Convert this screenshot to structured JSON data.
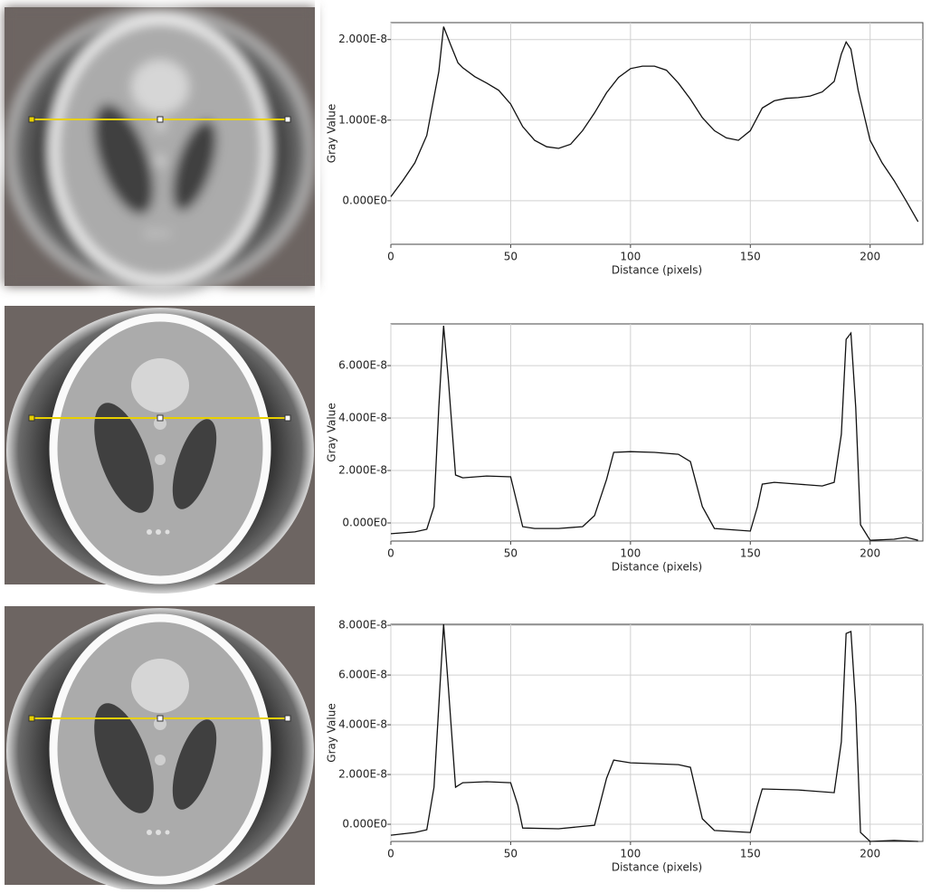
{
  "chart_data": [
    {
      "type": "line",
      "xlabel": "Distance (pixels)",
      "ylabel": "Gray Value",
      "xlim": [
        0,
        222
      ],
      "xticks": [
        0,
        50,
        100,
        150,
        200
      ],
      "ylim": [
        -5.4e-09,
        2.21e-08
      ],
      "yticks": [
        {
          "value": 0,
          "label": "0.000E0"
        },
        {
          "value": 1e-08,
          "label": "1.000E-8"
        },
        {
          "value": 2e-08,
          "label": "2.000E-8"
        }
      ],
      "grid": true,
      "x": [
        0,
        5,
        10,
        15,
        20,
        22,
        25,
        28,
        30,
        35,
        40,
        45,
        50,
        55,
        60,
        65,
        70,
        75,
        80,
        85,
        90,
        95,
        100,
        105,
        110,
        115,
        120,
        125,
        130,
        135,
        140,
        145,
        150,
        155,
        160,
        165,
        170,
        175,
        180,
        185,
        188,
        190,
        192,
        195,
        200,
        205,
        210,
        215,
        220
      ],
      "series": [
        {
          "color": "#111111",
          "values": [
            5e-10,
            2.5e-09,
            4.7e-09,
            8.1e-09,
            1.6e-08,
            2.16e-08,
            1.93e-08,
            1.71e-08,
            1.65e-08,
            1.54e-08,
            1.46e-08,
            1.37e-08,
            1.2e-08,
            9.2e-09,
            7.5e-09,
            6.7e-09,
            6.5e-09,
            7e-09,
            8.7e-09,
            1.09e-08,
            1.34e-08,
            1.53e-08,
            1.64e-08,
            1.67e-08,
            1.67e-08,
            1.62e-08,
            1.46e-08,
            1.26e-08,
            1.03e-08,
            8.7e-09,
            7.8e-09,
            7.5e-09,
            8.7e-09,
            1.15e-08,
            1.24e-08,
            1.27e-08,
            1.28e-08,
            1.3e-08,
            1.35e-08,
            1.48e-08,
            1.82e-08,
            1.97e-08,
            1.88e-08,
            1.37e-08,
            7.5e-09,
            4.7e-09,
            2.5e-09,
            0,
            -2.6e-09
          ]
        }
      ]
    },
    {
      "type": "line",
      "xlabel": "Distance (pixels)",
      "ylabel": "Gray Value",
      "xlim": [
        0,
        222
      ],
      "xticks": [
        0,
        50,
        100,
        150,
        200
      ],
      "ylim": [
        -6.9e-09,
        7.59e-08
      ],
      "yticks": [
        {
          "value": 0,
          "label": "0.000E0"
        },
        {
          "value": 2e-08,
          "label": "2.000E-8"
        },
        {
          "value": 4e-08,
          "label": "4.000E-8"
        },
        {
          "value": 6e-08,
          "label": "6.000E-8"
        }
      ],
      "grid": true,
      "x": [
        0,
        10,
        15,
        18,
        20,
        22,
        24,
        27,
        30,
        40,
        50,
        53,
        55,
        60,
        70,
        80,
        85,
        90,
        93,
        100,
        110,
        120,
        125,
        130,
        135,
        150,
        153,
        155,
        160,
        170,
        180,
        185,
        188,
        190,
        192,
        194,
        196,
        200,
        210,
        215,
        220
      ],
      "series": [
        {
          "color": "#111111",
          "values": [
            -4.1e-09,
            -3.4e-09,
            -2.4e-09,
            6.2e-09,
            4.41e-08,
            7.52e-08,
            5.45e-08,
            1.83e-08,
            1.72e-08,
            1.79e-08,
            1.76e-08,
            6.2e-09,
            -1.4e-09,
            -2.1e-09,
            -2.1e-09,
            -1.4e-09,
            2.8e-09,
            1.66e-08,
            2.69e-08,
            2.72e-08,
            2.69e-08,
            2.62e-08,
            2.34e-08,
            6.2e-09,
            -2.1e-09,
            -3.1e-09,
            6.2e-09,
            1.48e-08,
            1.55e-08,
            1.48e-08,
            1.41e-08,
            1.55e-08,
            3.38e-08,
            7e-08,
            7.24e-08,
            4.41e-08,
            -7e-10,
            -6.6e-09,
            -6.2e-09,
            -5.5e-09,
            -6.6e-09
          ]
        }
      ]
    },
    {
      "type": "line",
      "xlabel": "Distance (pixels)",
      "ylabel": "Gray Value",
      "xlim": [
        0,
        222
      ],
      "xticks": [
        0,
        50,
        100,
        150,
        200
      ],
      "ylim": [
        -6.9e-09,
        8.04e-08
      ],
      "yticks": [
        {
          "value": 0,
          "label": "0.000E0"
        },
        {
          "value": 2e-08,
          "label": "2.000E-8"
        },
        {
          "value": 4e-08,
          "label": "4.000E-8"
        },
        {
          "value": 6e-08,
          "label": "6.000E-8"
        },
        {
          "value": 8e-08,
          "label": "8.000E-8"
        }
      ],
      "grid": true,
      "x": [
        0,
        10,
        15,
        18,
        20,
        22,
        24,
        27,
        30,
        40,
        50,
        53,
        55,
        70,
        85,
        90,
        93,
        100,
        120,
        125,
        130,
        135,
        150,
        153,
        155,
        170,
        185,
        188,
        190,
        192,
        194,
        196,
        200,
        210,
        220
      ],
      "series": [
        {
          "color": "#111111",
          "values": [
            -4.4e-09,
            -3.3e-09,
            -2.2e-09,
            1.49e-08,
            4.76e-08,
            8.04e-08,
            5.49e-08,
            1.49e-08,
            1.67e-08,
            1.71e-08,
            1.67e-08,
            7.6e-09,
            -1.5e-09,
            -1.8e-09,
            -4e-10,
            1.85e-08,
            2.58e-08,
            2.47e-08,
            2.4e-08,
            2.29e-08,
            2.2e-09,
            -2.5e-09,
            -3.3e-09,
            7.6e-09,
            1.42e-08,
            1.38e-08,
            1.27e-08,
            3.31e-08,
            7.67e-08,
            7.75e-08,
            4.76e-08,
            -3.3e-09,
            -6.9e-09,
            -6.5e-09,
            -6.9e-09
          ]
        }
      ]
    }
  ]
}
